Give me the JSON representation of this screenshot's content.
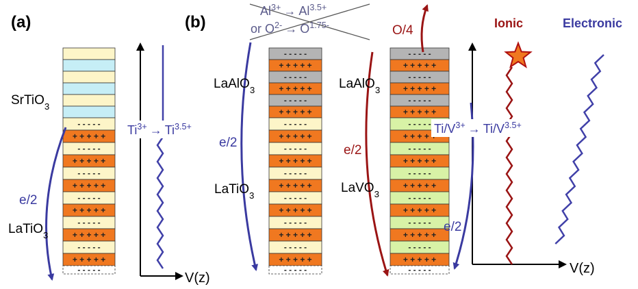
{
  "panel_a": {
    "label": "(a)",
    "top_film": [
      "SrTiO",
      "3"
    ],
    "bottom_film": [
      "LaTiO",
      "3"
    ],
    "charge_transfer": "e/2",
    "valence_change": [
      "Ti",
      "3+",
      "→",
      "Ti",
      "3.5+"
    ],
    "axis_label": "V(z)"
  },
  "panel_b": {
    "label": "(b)",
    "crossed_reactions": [
      [
        "Al",
        "3+",
        "→",
        "Al",
        "3.5+"
      ],
      [
        "or O",
        "2-",
        "→",
        "O",
        "1.75-"
      ]
    ],
    "left_stack": {
      "top_film": [
        "LaAlO",
        "3"
      ],
      "bottom_film": [
        "LaTiO",
        "3"
      ],
      "charge_transfer": "e/2"
    },
    "right_stack": {
      "top_film": [
        "LaAlO",
        "3"
      ],
      "bottom_film": [
        "LaVO",
        "3"
      ],
      "ionic_transfer": "O/4",
      "charge_transfer": "e/2"
    },
    "valence_change": [
      "Ti/V",
      "3+",
      "→",
      "Ti/V",
      "3.5+"
    ],
    "electronic_transfer": "e/2",
    "legend_ionic": "Ionic",
    "legend_electronic": "Electronic",
    "axis_label": "V(z)"
  },
  "layer_signs": {
    "positive": "+ + + + +",
    "negative": "- - - - -"
  }
}
